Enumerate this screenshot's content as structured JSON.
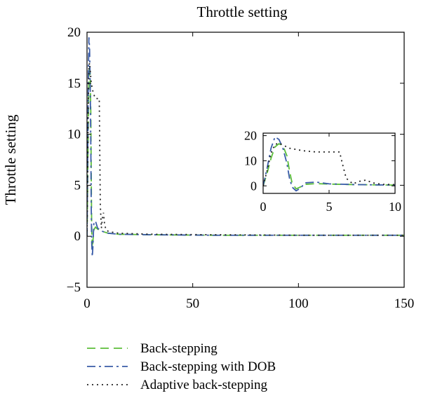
{
  "chart_data": {
    "type": "line",
    "title": "Throttle setting",
    "xlabel": "",
    "ylabel": "Throttle setting",
    "xlim": [
      0,
      150
    ],
    "ylim": [
      -5,
      20
    ],
    "xticks": [
      0,
      50,
      100,
      150
    ],
    "yticks": [
      -5,
      0,
      5,
      10,
      15,
      20
    ],
    "grid": false,
    "legend_position": "bottom-left",
    "series": [
      {
        "name": "Back-stepping",
        "color": "#5cbf3a",
        "dash": "dashed",
        "x": [
          0,
          0.3,
          0.6,
          0.9,
          1.2,
          1.5,
          1.8,
          2.0,
          2.2,
          2.5,
          2.8,
          3.2,
          4,
          5,
          7,
          10,
          15,
          30,
          60,
          100,
          150
        ],
        "y": [
          0,
          5,
          11,
          15.5,
          16.8,
          16,
          12,
          6,
          1,
          -1.2,
          -0.5,
          0.6,
          0.9,
          0.7,
          0.5,
          0.3,
          0.2,
          0.15,
          0.1,
          0.1,
          0.1
        ]
      },
      {
        "name": "Back-stepping with DOB",
        "color": "#3a5ca8",
        "dash": "dashdot",
        "x": [
          0,
          0.3,
          0.6,
          0.9,
          1.2,
          1.5,
          1.8,
          2.0,
          2.2,
          2.5,
          2.8,
          3.2,
          4,
          5,
          7,
          10,
          15,
          30,
          60,
          100,
          150
        ],
        "y": [
          0,
          7,
          15,
          19.5,
          18.5,
          15,
          9,
          3,
          -0.5,
          -2,
          -1,
          1.2,
          1.5,
          0.8,
          0.5,
          0.3,
          0.2,
          0.15,
          0.1,
          0.1,
          0.1
        ]
      },
      {
        "name": "Adaptive back-stepping",
        "color": "#222222",
        "dash": "dotted",
        "x": [
          0,
          0.3,
          0.6,
          0.9,
          1.2,
          1.6,
          2.0,
          3,
          4,
          5,
          5.8,
          6.0,
          6.3,
          6.8,
          7.3,
          7.8,
          8.3,
          9,
          10,
          12,
          15,
          30,
          60,
          100,
          150
        ],
        "y": [
          0,
          6,
          13,
          16.5,
          17,
          16,
          15,
          14,
          13.5,
          13.5,
          13.5,
          9,
          3,
          0.8,
          1.8,
          2.3,
          1.2,
          0.6,
          0.5,
          0.4,
          0.3,
          0.2,
          0.15,
          0.1,
          0.1
        ]
      }
    ],
    "inset": {
      "xlim": [
        0,
        10
      ],
      "ylim": [
        -3,
        21
      ],
      "xticks": [
        0,
        5,
        10
      ],
      "yticks": [
        0,
        10,
        20
      ]
    }
  }
}
